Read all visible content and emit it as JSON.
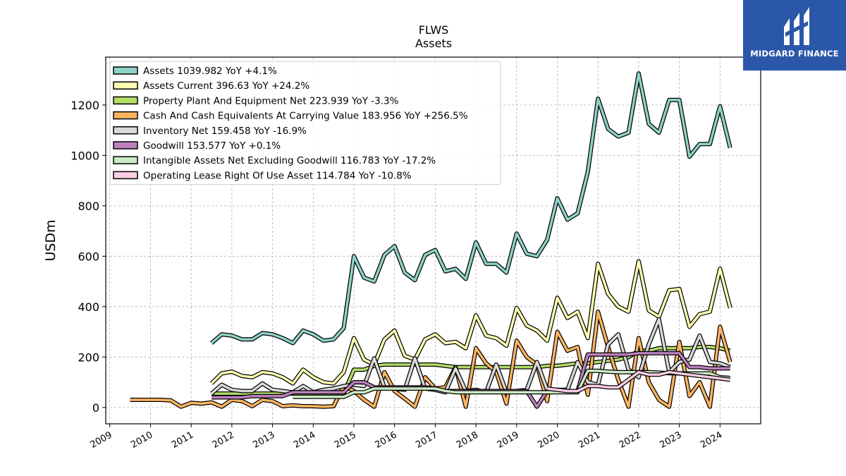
{
  "brand": {
    "name": "MIDGARD FINANCE",
    "icon": "midgard-m-logo-icon",
    "color": "#2b57a8"
  },
  "chart_data": {
    "type": "line",
    "title": "FLWS",
    "subtitle": "Assets",
    "xlabel": "",
    "ylabel": "USDm",
    "xlim": [
      2008.9,
      2025.0
    ],
    "ylim": [
      -65,
      1390
    ],
    "x_ticks": [
      2009,
      2010,
      2011,
      2012,
      2013,
      2014,
      2015,
      2016,
      2017,
      2018,
      2019,
      2020,
      2021,
      2022,
      2023,
      2024
    ],
    "x_tick_labels": [
      "2009",
      "2010",
      "2011",
      "2012",
      "2013",
      "2014",
      "2015",
      "2016",
      "2017",
      "2018",
      "2019",
      "2020",
      "2021",
      "2022",
      "2023",
      "2024"
    ],
    "y_ticks": [
      0,
      200,
      400,
      600,
      800,
      1000,
      1200
    ],
    "y_tick_labels": [
      "0",
      "200",
      "400",
      "600",
      "800",
      "1000",
      "1200"
    ],
    "grid": true,
    "legend_position": "top-left",
    "series": [
      {
        "name": "Assets",
        "legend": "Assets  1039.982 YoY +4.1%",
        "color": "#8dd3c7",
        "x": [
          2011.5,
          2011.75,
          2012.0,
          2012.25,
          2012.5,
          2012.75,
          2013.0,
          2013.25,
          2013.5,
          2013.75,
          2014.0,
          2014.25,
          2014.5,
          2014.75,
          2015.0,
          2015.25,
          2015.5,
          2015.75,
          2016.0,
          2016.25,
          2016.5,
          2016.75,
          2017.0,
          2017.25,
          2017.5,
          2017.75,
          2018.0,
          2018.25,
          2018.5,
          2018.75,
          2019.0,
          2019.25,
          2019.5,
          2019.75,
          2020.0,
          2020.25,
          2020.5,
          2020.75,
          2021.0,
          2021.25,
          2021.5,
          2021.75,
          2022.0,
          2022.25,
          2022.5,
          2022.75,
          2023.0,
          2023.25,
          2023.5,
          2023.75,
          2024.0,
          2024.25
        ],
        "y": [
          255,
          290,
          285,
          270,
          270,
          295,
          290,
          275,
          255,
          305,
          290,
          265,
          270,
          315,
          600,
          515,
          500,
          605,
          640,
          535,
          505,
          605,
          625,
          540,
          550,
          510,
          655,
          570,
          570,
          535,
          690,
          610,
          600,
          665,
          830,
          745,
          770,
          935,
          1225,
          1105,
          1075,
          1090,
          1325,
          1125,
          1090,
          1220,
          1220,
          995,
          1045,
          1045,
          1195,
          1030
        ]
      },
      {
        "name": "Assets Current",
        "legend": "Assets Current  396.63 YoY +24.2%",
        "color": "#ffffb3",
        "x": [
          2011.5,
          2011.75,
          2012.0,
          2012.25,
          2012.5,
          2012.75,
          2013.0,
          2013.25,
          2013.5,
          2013.75,
          2014.0,
          2014.25,
          2014.5,
          2014.75,
          2015.0,
          2015.25,
          2015.5,
          2015.75,
          2016.0,
          2016.25,
          2016.5,
          2016.75,
          2017.0,
          2017.25,
          2017.5,
          2017.75,
          2018.0,
          2018.25,
          2018.5,
          2018.75,
          2019.0,
          2019.25,
          2019.5,
          2019.75,
          2020.0,
          2020.25,
          2020.5,
          2020.75,
          2021.0,
          2021.25,
          2021.5,
          2021.75,
          2022.0,
          2022.25,
          2022.5,
          2022.75,
          2023.0,
          2023.25,
          2023.5,
          2023.75,
          2024.0,
          2024.25
        ],
        "y": [
          95,
          135,
          142,
          125,
          120,
          140,
          135,
          120,
          95,
          150,
          120,
          100,
          95,
          140,
          275,
          190,
          170,
          270,
          305,
          205,
          190,
          270,
          290,
          255,
          260,
          235,
          365,
          285,
          275,
          245,
          395,
          325,
          305,
          265,
          435,
          355,
          380,
          275,
          570,
          450,
          400,
          380,
          580,
          385,
          360,
          465,
          470,
          320,
          370,
          380,
          550,
          395
        ]
      },
      {
        "name": "Property Plant And Equipment Net",
        "legend": "Property Plant And Equipment Net  223.939 YoY -3.3%",
        "color": "#b3de69",
        "x": [
          2011.5,
          2011.75,
          2012.0,
          2012.25,
          2012.5,
          2012.75,
          2013.0,
          2013.25,
          2013.5,
          2013.75,
          2014.0,
          2014.25,
          2014.5,
          2014.75,
          2015.0,
          2015.25,
          2015.5,
          2015.75,
          2016.0,
          2016.25,
          2016.5,
          2016.75,
          2017.0,
          2017.25,
          2017.5,
          2017.75,
          2018.0,
          2018.25,
          2018.5,
          2018.75,
          2019.0,
          2019.25,
          2019.5,
          2019.75,
          2020.0,
          2020.25,
          2020.5,
          2020.75,
          2021.0,
          2021.25,
          2021.5,
          2021.75,
          2022.0,
          2022.25,
          2022.5,
          2022.75,
          2023.0,
          2023.25,
          2023.5,
          2023.75,
          2024.0,
          2024.25
        ],
        "y": [
          55,
          55,
          55,
          55,
          55,
          55,
          55,
          55,
          55,
          55,
          55,
          55,
          55,
          55,
          150,
          150,
          165,
          170,
          170,
          170,
          170,
          170,
          170,
          165,
          160,
          160,
          160,
          160,
          160,
          160,
          160,
          160,
          160,
          165,
          165,
          170,
          175,
          175,
          180,
          185,
          190,
          200,
          225,
          225,
          235,
          235,
          235,
          235,
          240,
          240,
          235,
          225
        ]
      },
      {
        "name": "Cash And Cash Equivalents At Carrying Value",
        "legend": "Cash And Cash Equivalents At Carrying Value  183.956 YoY +256.5%",
        "color": "#fdb462",
        "x": [
          2009.5,
          2009.75,
          2010.0,
          2010.25,
          2010.5,
          2010.75,
          2011.0,
          2011.25,
          2011.5,
          2011.75,
          2012.0,
          2012.25,
          2012.5,
          2012.75,
          2013.0,
          2013.25,
          2013.5,
          2013.75,
          2014.0,
          2014.25,
          2014.5,
          2014.75,
          2015.0,
          2015.25,
          2015.5,
          2015.75,
          2016.0,
          2016.25,
          2016.5,
          2016.75,
          2017.0,
          2017.25,
          2017.5,
          2017.75,
          2018.0,
          2018.25,
          2018.5,
          2018.75,
          2019.0,
          2019.25,
          2019.5,
          2019.75,
          2020.0,
          2020.25,
          2020.5,
          2020.75,
          2021.0,
          2021.25,
          2021.5,
          2021.75,
          2022.0,
          2022.25,
          2022.5,
          2022.75,
          2023.0,
          2023.25,
          2023.5,
          2023.75,
          2024.0,
          2024.25
        ],
        "y": [
          30,
          30,
          30,
          30,
          28,
          3,
          18,
          15,
          20,
          3,
          30,
          25,
          5,
          30,
          25,
          5,
          8,
          5,
          5,
          3,
          5,
          85,
          65,
          30,
          3,
          140,
          65,
          35,
          3,
          120,
          75,
          80,
          160,
          3,
          235,
          175,
          140,
          15,
          265,
          200,
          170,
          25,
          300,
          225,
          240,
          50,
          380,
          240,
          110,
          3,
          275,
          100,
          30,
          3,
          260,
          45,
          100,
          3,
          320,
          180
        ]
      },
      {
        "name": "Inventory Net",
        "legend": "Inventory Net  159.458 YoY -16.9%",
        "color": "#d9d9d9",
        "x": [
          2011.5,
          2011.75,
          2012.0,
          2012.25,
          2012.5,
          2012.75,
          2013.0,
          2013.25,
          2013.5,
          2013.75,
          2014.0,
          2014.25,
          2014.5,
          2014.75,
          2015.0,
          2015.25,
          2015.5,
          2015.75,
          2016.0,
          2016.25,
          2016.5,
          2016.75,
          2017.0,
          2017.25,
          2017.5,
          2017.75,
          2018.0,
          2018.25,
          2018.5,
          2018.75,
          2019.0,
          2019.25,
          2019.5,
          2019.75,
          2020.0,
          2020.25,
          2020.5,
          2020.75,
          2021.0,
          2021.25,
          2021.5,
          2021.75,
          2022.0,
          2022.25,
          2022.5,
          2022.75,
          2023.0,
          2023.25,
          2023.5,
          2023.75,
          2024.0,
          2024.25
        ],
        "y": [
          55,
          90,
          70,
          65,
          65,
          95,
          70,
          65,
          60,
          85,
          60,
          70,
          75,
          85,
          90,
          85,
          195,
          80,
          75,
          70,
          195,
          75,
          70,
          60,
          155,
          65,
          70,
          60,
          170,
          60,
          65,
          70,
          180,
          70,
          70,
          70,
          180,
          100,
          90,
          250,
          290,
          150,
          120,
          250,
          350,
          140,
          180,
          190,
          285,
          180,
          175,
          160
        ]
      },
      {
        "name": "Goodwill",
        "legend": "Goodwill  153.577 YoY +0.1%",
        "color": "#bc80bd",
        "x": [
          2011.5,
          2011.75,
          2012.0,
          2012.25,
          2012.5,
          2012.75,
          2013.0,
          2013.25,
          2013.5,
          2013.75,
          2014.0,
          2014.25,
          2014.5,
          2014.75,
          2015.0,
          2015.25,
          2015.5,
          2015.75,
          2016.0,
          2016.25,
          2016.5,
          2016.75,
          2017.0,
          2017.25,
          2017.5,
          2017.75,
          2018.0,
          2018.25,
          2018.5,
          2018.75,
          2019.0,
          2019.25,
          2019.5,
          2019.75,
          2020.0,
          2020.25,
          2020.5,
          2020.75,
          2021.0,
          2021.25,
          2021.5,
          2021.75,
          2022.0,
          2022.25,
          2022.5,
          2022.75,
          2023.0,
          2023.25,
          2023.5,
          2023.75,
          2024.0,
          2024.25
        ],
        "y": [
          40,
          40,
          40,
          40,
          45,
          45,
          45,
          45,
          60,
          60,
          60,
          60,
          60,
          60,
          100,
          100,
          80,
          80,
          80,
          80,
          80,
          80,
          75,
          65,
          65,
          65,
          65,
          65,
          65,
          65,
          65,
          65,
          3,
          65,
          65,
          65,
          65,
          210,
          210,
          210,
          210,
          210,
          215,
          215,
          215,
          215,
          215,
          160,
          160,
          155,
          155,
          155
        ]
      },
      {
        "name": "Intangible Assets Net Excluding Goodwill",
        "legend": "Intangible Assets Net Excluding Goodwill  116.783 YoY -17.2%",
        "color": "#ccebc5",
        "x": [
          2013.5,
          2013.75,
          2014.0,
          2014.25,
          2014.5,
          2014.75,
          2015.0,
          2015.25,
          2015.5,
          2015.75,
          2016.0,
          2016.25,
          2016.5,
          2016.75,
          2017.0,
          2017.25,
          2017.5,
          2017.75,
          2018.0,
          2018.25,
          2018.5,
          2018.75,
          2019.0,
          2019.25,
          2019.5,
          2019.75,
          2020.0,
          2020.25,
          2020.5,
          2020.75,
          2021.0,
          2021.25,
          2021.5,
          2021.75,
          2022.0,
          2022.25,
          2022.5,
          2022.75,
          2023.0,
          2023.25,
          2023.5,
          2023.75,
          2024.0,
          2024.25
        ],
        "y": [
          42,
          42,
          42,
          42,
          42,
          42,
          60,
          60,
          75,
          75,
          75,
          75,
          75,
          75,
          75,
          65,
          60,
          60,
          60,
          60,
          60,
          60,
          60,
          60,
          60,
          60,
          60,
          60,
          60,
          145,
          145,
          142,
          140,
          140,
          140,
          140,
          138,
          136,
          135,
          135,
          135,
          135,
          120,
          117
        ]
      },
      {
        "name": "Operating Lease Right Of Use Asset",
        "legend": "Operating Lease Right Of Use Asset  114.784 YoY -10.8%",
        "color": "#fccde5",
        "x": [
          2019.75,
          2020.0,
          2020.25,
          2020.5,
          2020.75,
          2021.0,
          2021.25,
          2021.5,
          2021.75,
          2022.0,
          2022.25,
          2022.5,
          2022.75,
          2023.0,
          2023.25,
          2023.5,
          2023.75,
          2024.0,
          2024.25
        ],
        "y": [
          75,
          70,
          65,
          65,
          85,
          85,
          80,
          80,
          110,
          140,
          130,
          130,
          140,
          135,
          130,
          125,
          120,
          115,
          110
        ]
      }
    ]
  }
}
